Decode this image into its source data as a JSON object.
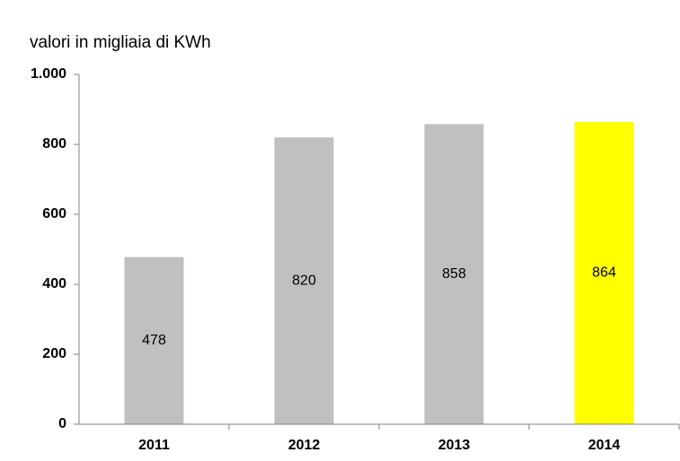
{
  "chart_data": {
    "type": "bar",
    "axis_label": "valori in migliaia di KWh",
    "categories": [
      "2011",
      "2012",
      "2013",
      "2014"
    ],
    "values": [
      478,
      820,
      858,
      864
    ],
    "colors": [
      "#c0c0c0",
      "#c0c0c0",
      "#c0c0c0",
      "#ffff00"
    ],
    "ylim": [
      0,
      1000
    ],
    "yticks": [
      0,
      200,
      400,
      600,
      800,
      {
        "value": 1000,
        "label": "1.000"
      }
    ],
    "grid": false
  }
}
